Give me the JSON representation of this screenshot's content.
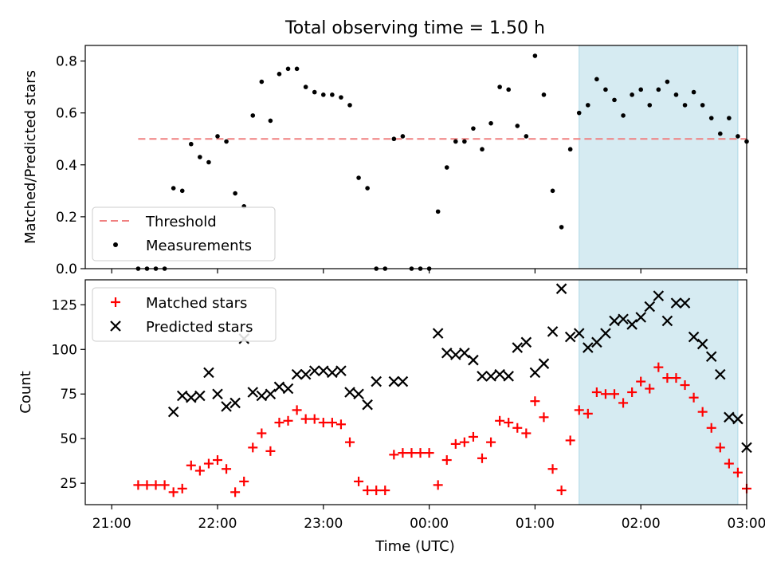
{
  "figure": {
    "title": "Total observing time = 1.50 h",
    "xlabel": "Time (UTC)",
    "x_ticks": [
      "21:00",
      "22:00",
      "23:00",
      "00:00",
      "01:00",
      "02:00",
      "03:00"
    ]
  },
  "colors": {
    "threshold": "#f08080",
    "measurements": "#000000",
    "matched": "#ff0000",
    "predicted": "#000000",
    "shade_fill": "#add8e6",
    "shade_alpha": 0.5
  },
  "chart_data": [
    {
      "type": "scatter",
      "panel": "top",
      "ylabel": "Matched/Predicted stars",
      "ylim": [
        0,
        0.86
      ],
      "y_ticks": [
        0.0,
        0.2,
        0.4,
        0.6,
        0.8
      ],
      "y_tick_labels": [
        "0.0",
        "0.2",
        "0.4",
        "0.6",
        "0.8"
      ],
      "legend_position": "lower-left",
      "shaded_interval": [
        "01:25",
        "02:55"
      ],
      "threshold": {
        "name": "Threshold",
        "y": 0.5,
        "x_range": [
          "21:15",
          "03:00"
        ]
      },
      "series": [
        {
          "name": "Measurements",
          "marker": "dot",
          "x": [
            "21:15",
            "21:20",
            "21:25",
            "21:30",
            "21:35",
            "21:40",
            "21:45",
            "21:50",
            "21:55",
            "22:00",
            "22:05",
            "22:10",
            "22:15",
            "22:20",
            "22:25",
            "22:30",
            "22:35",
            "22:40",
            "22:45",
            "22:50",
            "22:55",
            "23:00",
            "23:05",
            "23:10",
            "23:15",
            "23:20",
            "23:25",
            "23:30",
            "23:35",
            "23:40",
            "23:45",
            "23:50",
            "23:55",
            "00:00",
            "00:05",
            "00:10",
            "00:15",
            "00:20",
            "00:25",
            "00:30",
            "00:35",
            "00:40",
            "00:45",
            "00:50",
            "00:55",
            "01:00",
            "01:05",
            "01:10",
            "01:15",
            "01:20",
            "01:25",
            "01:30",
            "01:35",
            "01:40",
            "01:45",
            "01:50",
            "01:55",
            "02:00",
            "02:05",
            "02:10",
            "02:15",
            "02:20",
            "02:25",
            "02:30",
            "02:35",
            "02:40",
            "02:45",
            "02:50",
            "02:55",
            "03:00"
          ],
          "y": [
            0.0,
            0.0,
            0.0,
            0.0,
            0.31,
            0.3,
            0.48,
            0.43,
            0.41,
            0.51,
            0.49,
            0.29,
            0.24,
            0.59,
            0.72,
            0.57,
            0.75,
            0.77,
            0.77,
            0.7,
            0.68,
            0.67,
            0.67,
            0.66,
            0.63,
            0.35,
            0.31,
            0.0,
            0.0,
            0.5,
            0.51,
            0.0,
            0.0,
            0.0,
            0.22,
            0.39,
            0.49,
            0.49,
            0.54,
            0.46,
            0.56,
            0.7,
            0.69,
            0.55,
            0.51,
            0.82,
            0.67,
            0.3,
            0.16,
            0.46,
            0.6,
            0.63,
            0.73,
            0.69,
            0.65,
            0.59,
            0.67,
            0.69,
            0.63,
            0.69,
            0.72,
            0.67,
            0.63,
            0.68,
            0.63,
            0.58,
            0.52,
            0.58,
            0.51,
            0.49
          ]
        }
      ]
    },
    {
      "type": "scatter",
      "panel": "bottom",
      "ylabel": "Count",
      "ylim": [
        13,
        139
      ],
      "y_ticks": [
        25,
        50,
        75,
        100,
        125
      ],
      "y_tick_labels": [
        "25",
        "50",
        "75",
        "100",
        "125"
      ],
      "legend_position": "upper-left",
      "shaded_interval": [
        "01:25",
        "02:55"
      ],
      "series": [
        {
          "name": "Matched stars",
          "marker": "plus",
          "x": [
            "21:15",
            "21:20",
            "21:25",
            "21:30",
            "21:35",
            "21:40",
            "21:45",
            "21:50",
            "21:55",
            "22:00",
            "22:05",
            "22:10",
            "22:15",
            "22:20",
            "22:25",
            "22:30",
            "22:35",
            "22:40",
            "22:45",
            "22:50",
            "22:55",
            "23:00",
            "23:05",
            "23:10",
            "23:15",
            "23:20",
            "23:25",
            "23:30",
            "23:35",
            "23:40",
            "23:45",
            "23:50",
            "23:55",
            "00:00",
            "00:05",
            "00:10",
            "00:15",
            "00:20",
            "00:25",
            "00:30",
            "00:35",
            "00:40",
            "00:45",
            "00:50",
            "00:55",
            "01:00",
            "01:05",
            "01:10",
            "01:15",
            "01:20",
            "01:25",
            "01:30",
            "01:35",
            "01:40",
            "01:45",
            "01:50",
            "01:55",
            "02:00",
            "02:05",
            "02:10",
            "02:15",
            "02:20",
            "02:25",
            "02:30",
            "02:35",
            "02:40",
            "02:45",
            "02:50",
            "02:55",
            "03:00"
          ],
          "y": [
            24,
            24,
            24,
            24,
            20,
            22,
            35,
            32,
            36,
            38,
            33,
            20,
            26,
            45,
            53,
            43,
            59,
            60,
            66,
            61,
            61,
            59,
            59,
            58,
            48,
            26,
            21,
            21,
            21,
            41,
            42,
            42,
            42,
            42,
            24,
            38,
            47,
            48,
            51,
            39,
            48,
            60,
            59,
            56,
            53,
            71,
            62,
            33,
            21,
            49,
            66,
            64,
            76,
            75,
            75,
            70,
            76,
            82,
            78,
            90,
            84,
            84,
            80,
            73,
            65,
            56,
            45,
            36,
            31,
            22
          ]
        },
        {
          "name": "Predicted stars",
          "marker": "x",
          "x": [
            "21:35",
            "21:40",
            "21:45",
            "21:50",
            "21:55",
            "22:00",
            "22:05",
            "22:10",
            "22:15",
            "22:20",
            "22:25",
            "22:30",
            "22:35",
            "22:40",
            "22:45",
            "22:50",
            "22:55",
            "23:00",
            "23:05",
            "23:10",
            "23:15",
            "23:20",
            "23:25",
            "23:30",
            "23:40",
            "23:45",
            "00:05",
            "00:10",
            "00:15",
            "00:20",
            "00:25",
            "00:30",
            "00:35",
            "00:40",
            "00:45",
            "00:50",
            "00:55",
            "01:00",
            "01:05",
            "01:10",
            "01:15",
            "01:20",
            "01:25",
            "01:30",
            "01:35",
            "01:40",
            "01:45",
            "01:50",
            "01:55",
            "02:00",
            "02:05",
            "02:10",
            "02:15",
            "02:20",
            "02:25",
            "02:30",
            "02:35",
            "02:40",
            "02:45",
            "02:50",
            "02:55",
            "03:00"
          ],
          "y": [
            65,
            74,
            73,
            74,
            87,
            75,
            68,
            70,
            106,
            76,
            74,
            75,
            79,
            78,
            86,
            86,
            88,
            88,
            87,
            88,
            76,
            75,
            69,
            82,
            82,
            82,
            109,
            98,
            97,
            98,
            94,
            85,
            85,
            86,
            85,
            101,
            104,
            87,
            92,
            110,
            134,
            107,
            109,
            101,
            104,
            109,
            116,
            117,
            114,
            118,
            124,
            130,
            116,
            126,
            126,
            107,
            103,
            96,
            86,
            62,
            61,
            45
          ]
        }
      ]
    }
  ]
}
